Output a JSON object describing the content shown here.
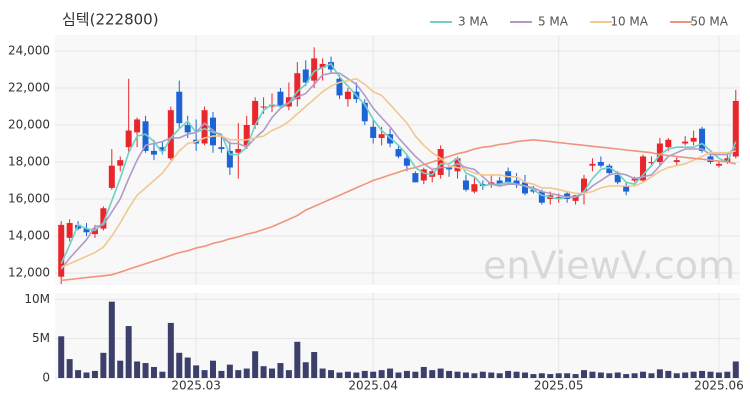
{
  "chart_data": {
    "type": "candlestick",
    "title": "심텍(222800)",
    "watermark": "enViewV.com",
    "legend": "top-right",
    "grid": true,
    "up_color": "#e8262b",
    "down_color": "#1c64d6",
    "categories": [
      null,
      null,
      null,
      null,
      null,
      null,
      null,
      null,
      null,
      null,
      null,
      null,
      null,
      null,
      null,
      null,
      "2025.03",
      null,
      null,
      null,
      null,
      null,
      null,
      null,
      null,
      null,
      null,
      null,
      null,
      null,
      null,
      null,
      null,
      null,
      null,
      null,
      null,
      "2025.04",
      null,
      null,
      null,
      null,
      null,
      null,
      null,
      null,
      null,
      null,
      null,
      null,
      null,
      null,
      null,
      null,
      null,
      null,
      null,
      null,
      null,
      "2025.05",
      null,
      null,
      null,
      null,
      null,
      null,
      null,
      null,
      null,
      null,
      null,
      null,
      null,
      null,
      null,
      null,
      null,
      null,
      "2025.06",
      null,
      null
    ],
    "open": [
      11800,
      13900,
      14600,
      14400,
      14100,
      14400,
      16600,
      17800,
      18800,
      19600,
      20200,
      18600,
      18800,
      18200,
      21800,
      20000,
      19200,
      19000,
      20400,
      18800,
      18600,
      18500,
      18900,
      20000,
      21000,
      21000,
      21800,
      21000,
      21400,
      23000,
      22400,
      23100,
      23400,
      22500,
      21400,
      21800,
      21200,
      19900,
      19300,
      19500,
      18700,
      18200,
      17400,
      17000,
      17200,
      17300,
      17700,
      17500,
      17000,
      16400,
      16800,
      16800,
      17000,
      17500,
      17000,
      16900,
      16500,
      16400,
      16000,
      16000,
      16300,
      15900,
      16300,
      17800,
      18000,
      17800,
      17300,
      16700,
      17000,
      17000,
      18000,
      18000,
      18800,
      18000,
      19000,
      19100,
      19800,
      18300,
      17800,
      18000,
      18300
    ],
    "high": [
      14800,
      14900,
      14800,
      14700,
      14600,
      15600,
      18700,
      18300,
      22500,
      20400,
      20500,
      19200,
      19100,
      21000,
      22400,
      20500,
      20300,
      21000,
      20700,
      19400,
      19100,
      20100,
      20500,
      21500,
      21500,
      21700,
      22000,
      22300,
      23400,
      23500,
      24200,
      23600,
      23700,
      22700,
      22000,
      22300,
      21400,
      20300,
      19900,
      19800,
      18900,
      18400,
      17500,
      17700,
      17600,
      18900,
      17800,
      18300,
      17300,
      17200,
      17000,
      17300,
      17200,
      17700,
      17400,
      17300,
      16700,
      16500,
      16400,
      16300,
      16400,
      16200,
      17300,
      18200,
      18300,
      17900,
      17500,
      16900,
      17200,
      18400,
      18300,
      19300,
      19300,
      18300,
      19400,
      19700,
      19900,
      18600,
      18000,
      18500,
      21900
    ],
    "low": [
      11400,
      13700,
      14300,
      14000,
      13900,
      14300,
      16500,
      17500,
      18500,
      18800,
      18500,
      18100,
      18400,
      18100,
      19800,
      19300,
      18600,
      18900,
      18500,
      18500,
      17300,
      17100,
      18700,
      19800,
      20600,
      20700,
      20900,
      20800,
      21000,
      22100,
      22000,
      22400,
      22800,
      21400,
      21000,
      21200,
      20000,
      19000,
      18900,
      18800,
      18200,
      17500,
      16900,
      16800,
      16900,
      17100,
      17200,
      17100,
      16400,
      16300,
      16500,
      16600,
      16700,
      16800,
      16600,
      16200,
      16300,
      15700,
      15700,
      15800,
      15800,
      15700,
      15700,
      17500,
      17700,
      17300,
      16800,
      16200,
      16900,
      16900,
      17800,
      17800,
      18600,
      17800,
      18900,
      18900,
      18500,
      17900,
      17700,
      17900,
      18200
    ],
    "close": [
      14600,
      14700,
      14400,
      14200,
      14400,
      15500,
      17800,
      18100,
      19700,
      20300,
      18600,
      18400,
      18600,
      20800,
      20100,
      19600,
      19000,
      20800,
      18900,
      18700,
      17700,
      18700,
      20000,
      21300,
      21000,
      21100,
      21000,
      21500,
      22800,
      22300,
      23600,
      23300,
      23000,
      21600,
      21800,
      21400,
      20200,
      19300,
      19500,
      19000,
      18300,
      17800,
      16900,
      17600,
      17500,
      18700,
      17600,
      18200,
      16500,
      16800,
      16700,
      16900,
      16800,
      16900,
      16800,
      16300,
      16400,
      15800,
      16200,
      16100,
      16000,
      16200,
      17100,
      17900,
      17800,
      17400,
      16900,
      16400,
      17100,
      18300,
      18000,
      19000,
      19200,
      18100,
      19100,
      19300,
      18600,
      18000,
      17900,
      18200,
      21300
    ],
    "ylim": [
      11350,
      24865
    ],
    "yticks": [
      {
        "value": 12000,
        "label": "12,000"
      },
      {
        "value": 14000,
        "label": "14,000"
      },
      {
        "value": 16000,
        "label": "16,000"
      },
      {
        "value": 18000,
        "label": "18,000"
      },
      {
        "value": 20000,
        "label": "20,000"
      },
      {
        "value": 22000,
        "label": "22,000"
      },
      {
        "value": 24000,
        "label": "24,000"
      }
    ],
    "series": [
      {
        "name": "3 MA",
        "color": "#6fd0c6",
        "values": [
          12500,
          13500,
          14600,
          14400,
          14300,
          14700,
          15900,
          17100,
          18500,
          19400,
          19500,
          19100,
          18500,
          19300,
          19800,
          20200,
          19600,
          19800,
          19600,
          19500,
          18400,
          18400,
          18800,
          20000,
          20800,
          21100,
          21000,
          21200,
          21800,
          22200,
          22900,
          23100,
          23300,
          22600,
          22100,
          21600,
          21100,
          20300,
          19700,
          19300,
          18900,
          18400,
          17700,
          17400,
          17300,
          17900,
          17900,
          18200,
          17400,
          17200,
          16700,
          16800,
          16800,
          16900,
          16800,
          16700,
          16500,
          16200,
          16100,
          16000,
          16100,
          16100,
          16400,
          17100,
          17600,
          17700,
          17400,
          16900,
          16800,
          17300,
          17800,
          18400,
          18700,
          18800,
          18800,
          18800,
          19000,
          18600,
          18200,
          18000,
          19100
        ]
      },
      {
        "name": "5 MA",
        "color": "#b09ac8",
        "values": [
          12200,
          12800,
          13300,
          13800,
          14500,
          14600,
          15300,
          16000,
          17100,
          18100,
          18900,
          19000,
          19100,
          19300,
          19300,
          19500,
          19600,
          20100,
          19700,
          19400,
          19000,
          19000,
          18800,
          19300,
          19700,
          20400,
          20900,
          21200,
          21500,
          21700,
          22200,
          22700,
          22800,
          22800,
          22500,
          22200,
          21600,
          20900,
          20400,
          19900,
          19300,
          18800,
          18300,
          17900,
          17600,
          17700,
          17700,
          17900,
          17700,
          17600,
          17200,
          16800,
          16700,
          16800,
          16800,
          16700,
          16600,
          16400,
          16300,
          16200,
          16100,
          16100,
          16300,
          16700,
          17000,
          17300,
          17400,
          17300,
          17100,
          17200,
          17300,
          17800,
          18300,
          18500,
          18700,
          18700,
          18700,
          18400,
          18400,
          18400,
          18800
        ]
      },
      {
        "name": "10 MA",
        "color": "#f0c890",
        "values": [
          12300,
          12500,
          12700,
          12900,
          13100,
          13400,
          14000,
          14700,
          15500,
          16200,
          16600,
          17000,
          17400,
          18000,
          18600,
          19000,
          19100,
          19300,
          19400,
          19400,
          19200,
          19200,
          19200,
          19300,
          19400,
          19700,
          19900,
          20200,
          20600,
          21000,
          21400,
          21800,
          22100,
          22300,
          22400,
          22500,
          22200,
          21800,
          21600,
          21100,
          20600,
          20100,
          19400,
          18900,
          18500,
          18200,
          17800,
          17700,
          17600,
          17400,
          17300,
          17300,
          17300,
          17200,
          17200,
          16900,
          16800,
          16600,
          16600,
          16500,
          16400,
          16300,
          16300,
          16400,
          16600,
          16700,
          16700,
          16700,
          16700,
          16900,
          17200,
          17500,
          17700,
          17800,
          17900,
          18100,
          18300,
          18500,
          18500,
          18500,
          18600
        ]
      },
      {
        "name": "50 MA",
        "color": "#f0947e",
        "values": [
          11600,
          11650,
          11700,
          11750,
          11800,
          11850,
          11900,
          12050,
          12200,
          12350,
          12500,
          12650,
          12800,
          12950,
          13100,
          13200,
          13350,
          13450,
          13600,
          13700,
          13850,
          13950,
          14100,
          14200,
          14350,
          14500,
          14700,
          14900,
          15100,
          15400,
          15600,
          15800,
          16000,
          16200,
          16400,
          16600,
          16800,
          17000,
          17150,
          17300,
          17450,
          17600,
          17700,
          17850,
          18000,
          18150,
          18300,
          18450,
          18550,
          18700,
          18800,
          18850,
          18950,
          19000,
          19100,
          19150,
          19200,
          19150,
          19100,
          19050,
          19000,
          18950,
          18900,
          18850,
          18800,
          18750,
          18700,
          18650,
          18600,
          18550,
          18500,
          18400,
          18350,
          18300,
          18250,
          18200,
          18150,
          18100,
          18050,
          18000,
          17900
        ]
      }
    ],
    "volume": {
      "color": "#3d3f6b",
      "ylim": [
        0,
        10800000
      ],
      "yticks": [
        0,
        {
          "value": 5000000,
          "label": "5M"
        },
        {
          "value": 10000000,
          "label": "10M"
        }
      ],
      "values": [
        5300000,
        2400000,
        1000000,
        700000,
        900000,
        3200000,
        9700000,
        2200000,
        6600000,
        2100000,
        1900000,
        1400000,
        800000,
        7000000,
        3200000,
        2600000,
        1600000,
        1000000,
        2200000,
        900000,
        1700000,
        1000000,
        1200000,
        3400000,
        1500000,
        1200000,
        1900000,
        1000000,
        4600000,
        2000000,
        3300000,
        1200000,
        1000000,
        700000,
        800000,
        700000,
        900000,
        800000,
        1000000,
        1200000,
        700000,
        900000,
        800000,
        1400000,
        1000000,
        1200000,
        900000,
        800000,
        700000,
        600000,
        800000,
        700000,
        600000,
        900000,
        800000,
        700000,
        500000,
        600000,
        500000,
        600000,
        600000,
        500000,
        1000000,
        800000,
        700000,
        600000,
        700000,
        500000,
        600000,
        800000,
        600000,
        1100000,
        900000,
        600000,
        700000,
        800000,
        900000,
        800000,
        700000,
        800000,
        2100000
      ]
    }
  }
}
